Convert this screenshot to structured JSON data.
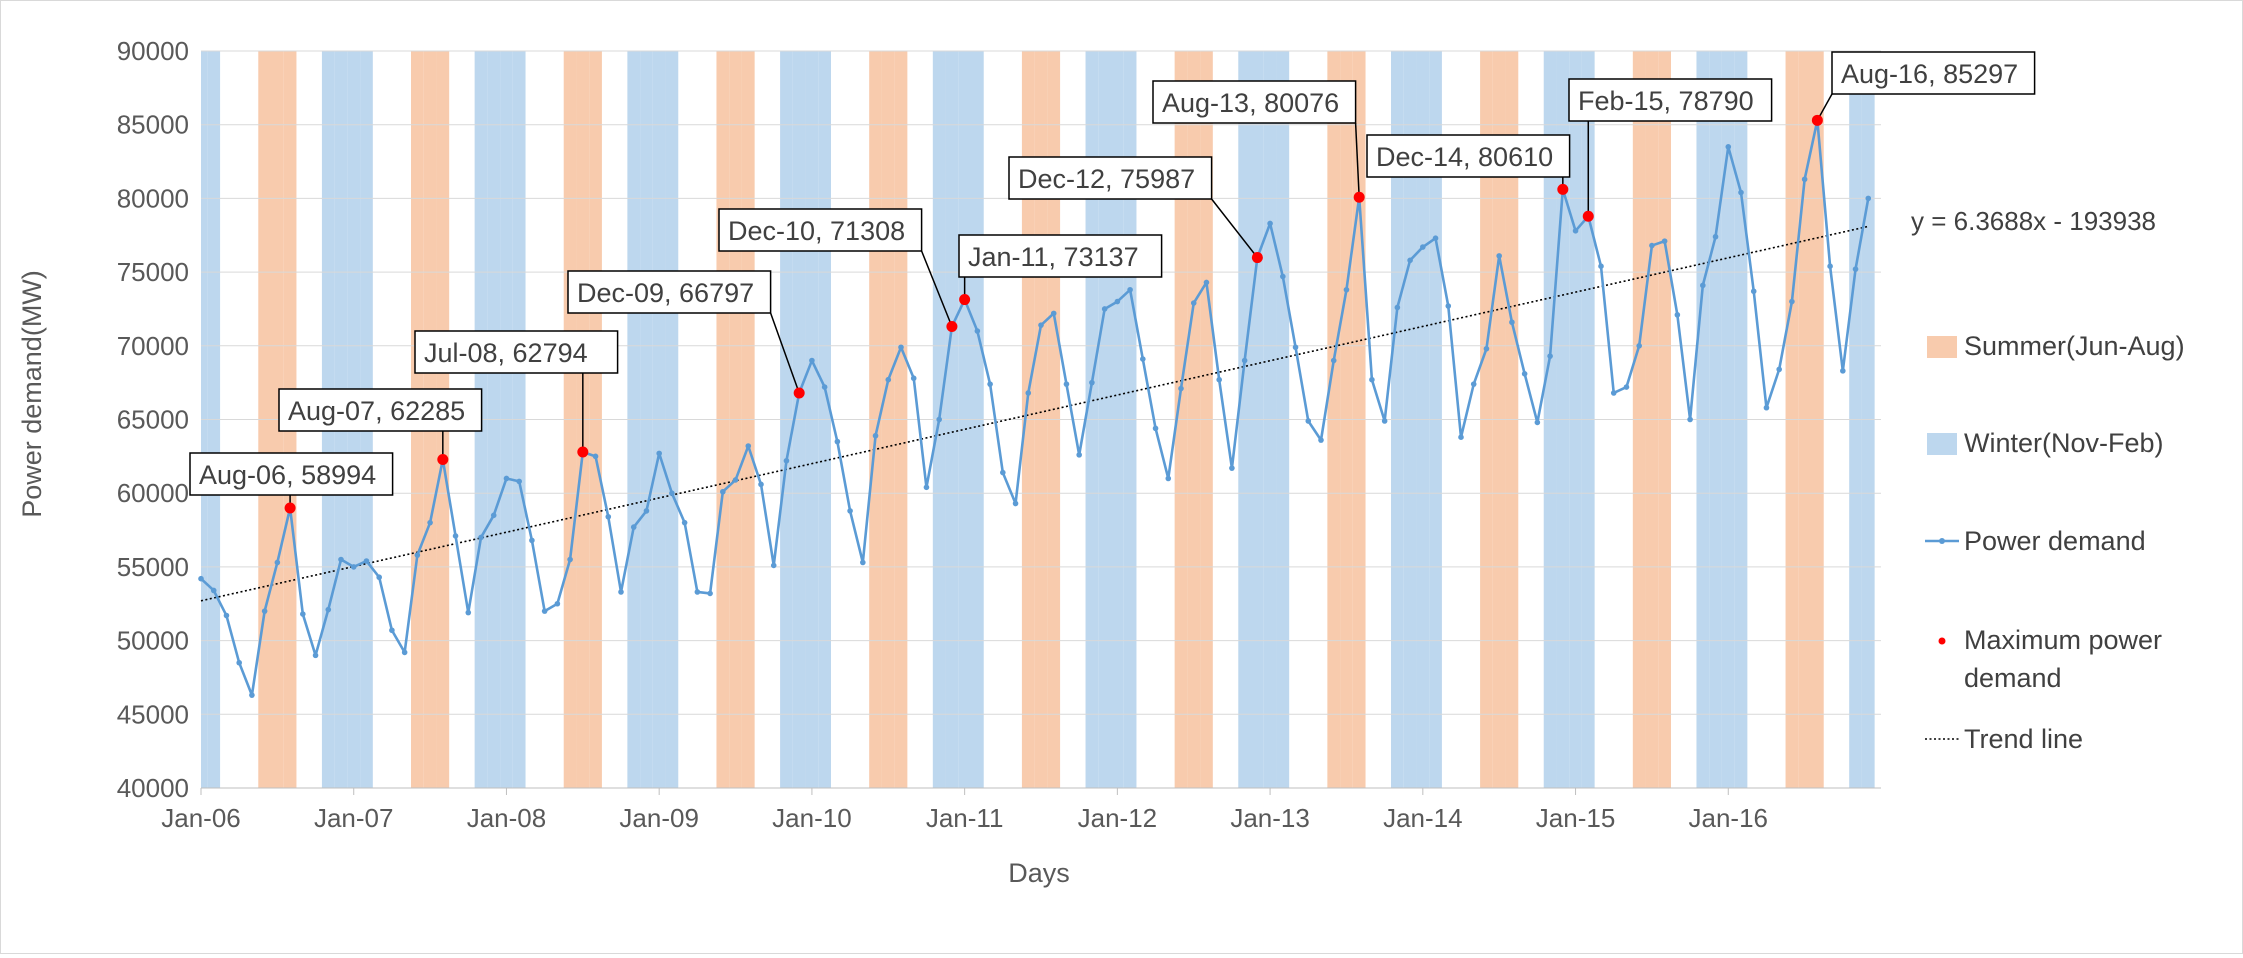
{
  "chart_data": {
    "type": "line",
    "title": "",
    "xlabel": "Days",
    "ylabel": "Power demand(MW)",
    "ylim": [
      40000,
      90000
    ],
    "yticks": [
      40000,
      45000,
      50000,
      55000,
      60000,
      65000,
      70000,
      75000,
      80000,
      85000,
      90000
    ],
    "xlim": [
      "2006-01",
      "2016-12"
    ],
    "xticks": [
      {
        "month": "2006-01",
        "label": "Jan-06"
      },
      {
        "month": "2007-01",
        "label": "Jan-07"
      },
      {
        "month": "2008-01",
        "label": "Jan-08"
      },
      {
        "month": "2009-01",
        "label": "Jan-09"
      },
      {
        "month": "2010-01",
        "label": "Jan-10"
      },
      {
        "month": "2011-01",
        "label": "Jan-11"
      },
      {
        "month": "2012-01",
        "label": "Jan-12"
      },
      {
        "month": "2013-01",
        "label": "Jan-13"
      },
      {
        "month": "2014-01",
        "label": "Jan-14"
      },
      {
        "month": "2015-01",
        "label": "Jan-15"
      },
      {
        "month": "2016-01",
        "label": "Jan-16"
      }
    ],
    "grid": true,
    "legend_position": "right",
    "series": [
      {
        "name": "Power demand",
        "color": "#5b9bd5",
        "start_month": "2006-01",
        "values": [
          54200,
          53400,
          51700,
          48500,
          46300,
          52000,
          55300,
          58994,
          51800,
          49000,
          52100,
          55500,
          55000,
          55400,
          54300,
          50700,
          49200,
          55800,
          58000,
          62285,
          57100,
          51900,
          57000,
          58500,
          61000,
          60800,
          56800,
          52000,
          52500,
          55500,
          62794,
          62500,
          58400,
          53300,
          57700,
          58800,
          62700,
          60000,
          58000,
          53300,
          53200,
          60100,
          60900,
          63200,
          60600,
          55100,
          62200,
          66797,
          69000,
          67200,
          63500,
          58800,
          55300,
          63900,
          67700,
          69900,
          67800,
          60400,
          65000,
          71308,
          73137,
          71000,
          67400,
          61400,
          59300,
          66800,
          71400,
          72200,
          67400,
          62600,
          67500,
          72500,
          73000,
          73800,
          69100,
          64400,
          61000,
          67100,
          72900,
          74300,
          67700,
          61700,
          69000,
          75987,
          78300,
          74700,
          69900,
          64900,
          63600,
          69000,
          73800,
          80076,
          67700,
          64900,
          72600,
          75800,
          76700,
          77300,
          72700,
          63800,
          67400,
          69800,
          76100,
          71600,
          68100,
          64800,
          69300,
          80610,
          77800,
          78790,
          75400,
          66800,
          67200,
          70000,
          76800,
          77100,
          72100,
          65000,
          74100,
          77400,
          83500,
          80400,
          73700,
          65800,
          68400,
          73000,
          81300,
          85297,
          75400,
          68300,
          75200,
          80000
        ]
      },
      {
        "name": "Maximum power demand",
        "color": "#ff0000",
        "points": [
          {
            "month": "2006-08",
            "value": 58994,
            "label": "Aug-06, 58994"
          },
          {
            "month": "2007-08",
            "value": 62285,
            "label": "Aug-07, 62285"
          },
          {
            "month": "2008-07",
            "value": 62794,
            "label": "Jul-08, 62794"
          },
          {
            "month": "2009-12",
            "value": 66797,
            "label": "Dec-09, 66797"
          },
          {
            "month": "2010-12",
            "value": 71308,
            "label": "Dec-10, 71308"
          },
          {
            "month": "2011-01",
            "value": 73137,
            "label": "Jan-11, 73137"
          },
          {
            "month": "2012-12",
            "value": 75987,
            "label": "Dec-12, 75987"
          },
          {
            "month": "2013-08",
            "value": 80076,
            "label": "Aug-13, 80076"
          },
          {
            "month": "2014-12",
            "value": 80610,
            "label": "Dec-14, 80610"
          },
          {
            "month": "2015-02",
            "value": 78790,
            "label": "Feb-15, 78790"
          },
          {
            "month": "2016-08",
            "value": 85297,
            "label": "Aug-16, 85297"
          }
        ]
      },
      {
        "name": "Trend line",
        "color": "#000000",
        "equation": "y = 6.3688x - 193938",
        "start": {
          "month": "2006-01",
          "value": 52700
        },
        "end": {
          "month": "2016-12",
          "value": 78100
        }
      }
    ],
    "bands": [
      {
        "name": "Summer(Jun-Aug)",
        "color": "#f8cbad",
        "months": [
          6,
          7,
          8
        ]
      },
      {
        "name": "Winter(Nov-Feb)",
        "color": "#bdd7ee",
        "months": [
          11,
          12,
          1,
          2
        ]
      }
    ],
    "legend": [
      "Summer(Jun-Aug)",
      "Winter(Nov-Feb)",
      "Power demand",
      "Maximum power demand",
      "Trend line"
    ]
  }
}
